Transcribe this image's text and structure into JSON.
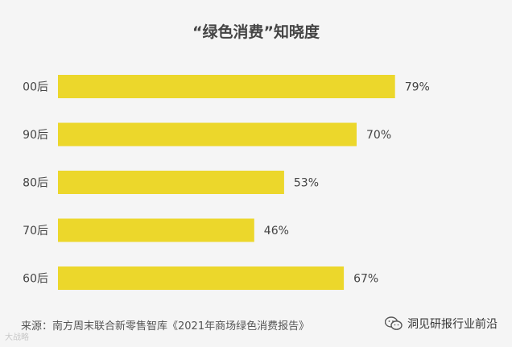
{
  "chart_data": {
    "type": "bar",
    "orientation": "horizontal",
    "title": "“绿色消费”知晓度",
    "categories": [
      "00后",
      "90后",
      "80后",
      "70后",
      "60后"
    ],
    "values": [
      79,
      70,
      53,
      46,
      67
    ],
    "value_labels": [
      "79%",
      "70%",
      "53%",
      "46%",
      "67%"
    ],
    "unit": "%",
    "xlim": [
      0,
      100
    ],
    "grid": false,
    "legend": "none",
    "bar_color": "#ecd72b",
    "background_color": "#f5f5f5"
  },
  "footer": {
    "source": "来源：南方周末联合新零售智库《2021年商场绿色消费报告》",
    "watermark": "洞见研报行业前沿",
    "watermark_icon": "wechat-icon",
    "corner_mark": "大战略"
  }
}
